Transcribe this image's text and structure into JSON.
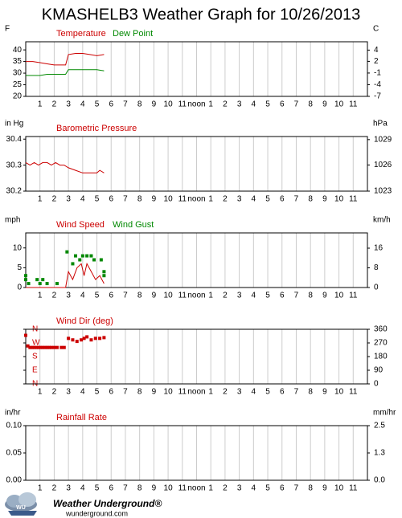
{
  "title": "KMASHELB3 Weather Graph for 10/26/2013",
  "chart_data": [
    {
      "type": "line",
      "unit_left": "F",
      "unit_right": "C",
      "xlim": [
        0,
        24
      ],
      "xticks": [
        1,
        2,
        3,
        4,
        5,
        6,
        7,
        8,
        9,
        10,
        11,
        {
          "value": 12,
          "label": "noon"
        },
        {
          "value": 13,
          "label": "1"
        },
        {
          "value": 14,
          "label": "2"
        },
        {
          "value": 15,
          "label": "3"
        },
        {
          "value": 16,
          "label": "4"
        },
        {
          "value": 17,
          "label": "5"
        },
        {
          "value": 18,
          "label": "6"
        },
        {
          "value": 19,
          "label": "7"
        },
        {
          "value": 20,
          "label": "8"
        },
        {
          "value": 21,
          "label": "9"
        },
        {
          "value": 22,
          "label": "10"
        },
        {
          "value": 23,
          "label": "11"
        }
      ],
      "ylim": [
        20,
        43.5
      ],
      "yticks": [
        20,
        25,
        30,
        35,
        40
      ],
      "y2lim": [
        -6.7,
        6.4
      ],
      "y2ticks": [
        {
          "value": -6.7,
          "label": "-7"
        },
        {
          "value": -3.9,
          "label": "-4"
        },
        {
          "value": -1.1,
          "label": "-1"
        },
        {
          "value": 1.7,
          "label": "2"
        },
        {
          "value": 4.4,
          "label": "4"
        }
      ],
      "grid": true,
      "series": [
        {
          "name": "Temperature",
          "color": "#cc0000",
          "x": [
            0,
            0.5,
            1,
            1.5,
            2,
            2.5,
            2.8,
            3,
            3.5,
            4,
            4.5,
            5,
            5.5
          ],
          "values": [
            35,
            35,
            34.5,
            34,
            33.5,
            33.5,
            33.5,
            38,
            38.5,
            38.5,
            38,
            37.5,
            38
          ]
        },
        {
          "name": "Dew Point",
          "color": "#008800",
          "x": [
            0,
            0.5,
            1,
            1.5,
            2,
            2.5,
            2.8,
            3,
            3.5,
            4,
            4.5,
            5,
            5.5
          ],
          "values": [
            29,
            29,
            29,
            29.5,
            29.5,
            29.5,
            29.5,
            31.5,
            31.5,
            31.5,
            31.5,
            31.5,
            31
          ]
        }
      ]
    },
    {
      "type": "line",
      "unit_left": "in Hg",
      "unit_right": "hPa",
      "xlim": [
        0,
        24
      ],
      "xticks": [
        1,
        2,
        3,
        4,
        5,
        6,
        7,
        8,
        9,
        10,
        11,
        {
          "value": 12,
          "label": "noon"
        },
        {
          "value": 13,
          "label": "1"
        },
        {
          "value": 14,
          "label": "2"
        },
        {
          "value": 15,
          "label": "3"
        },
        {
          "value": 16,
          "label": "4"
        },
        {
          "value": 17,
          "label": "5"
        },
        {
          "value": 18,
          "label": "6"
        },
        {
          "value": 19,
          "label": "7"
        },
        {
          "value": 20,
          "label": "8"
        },
        {
          "value": 21,
          "label": "9"
        },
        {
          "value": 22,
          "label": "10"
        },
        {
          "value": 23,
          "label": "11"
        }
      ],
      "ylim": [
        30.2,
        30.41
      ],
      "yticks": [
        30.2,
        30.3,
        30.4
      ],
      "y2lim": [
        1022.7,
        1029.8
      ],
      "y2ticks": [
        {
          "value": 1022.7,
          "label": "1023"
        },
        {
          "value": 1026.1,
          "label": "1026"
        },
        {
          "value": 1029.4,
          "label": "1029"
        }
      ],
      "grid": true,
      "series": [
        {
          "name": "Barometric Pressure",
          "color": "#cc0000",
          "x": [
            0,
            0.3,
            0.6,
            0.9,
            1.2,
            1.5,
            1.8,
            2.1,
            2.4,
            2.7,
            3,
            3.5,
            4,
            4.5,
            5,
            5.2,
            5.5
          ],
          "values": [
            30.31,
            30.3,
            30.31,
            30.3,
            30.31,
            30.31,
            30.3,
            30.31,
            30.3,
            30.3,
            30.29,
            30.28,
            30.27,
            30.27,
            30.27,
            30.28,
            30.27
          ]
        }
      ]
    },
    {
      "type": "line",
      "unit_left": "mph",
      "unit_right": "km/h",
      "xlim": [
        0,
        24
      ],
      "xticks": [
        1,
        2,
        3,
        4,
        5,
        6,
        7,
        8,
        9,
        10,
        11,
        {
          "value": 12,
          "label": "noon"
        },
        {
          "value": 13,
          "label": "1"
        },
        {
          "value": 14,
          "label": "2"
        },
        {
          "value": 15,
          "label": "3"
        },
        {
          "value": 16,
          "label": "4"
        },
        {
          "value": 17,
          "label": "5"
        },
        {
          "value": 18,
          "label": "6"
        },
        {
          "value": 19,
          "label": "7"
        },
        {
          "value": 20,
          "label": "8"
        },
        {
          "value": 21,
          "label": "9"
        },
        {
          "value": 22,
          "label": "10"
        },
        {
          "value": 23,
          "label": "11"
        }
      ],
      "ylim": [
        0,
        13.8
      ],
      "yticks": [
        0,
        5,
        10
      ],
      "y2lim": [
        0,
        22.2
      ],
      "y2ticks": [
        0,
        8,
        16
      ],
      "grid": true,
      "series": [
        {
          "name": "Wind Speed",
          "color": "#cc0000",
          "x": [
            0,
            0.5,
            1,
            1.5,
            2,
            2.5,
            2.8,
            3,
            3.3,
            3.6,
            3.9,
            4.1,
            4.3,
            4.6,
            4.9,
            5.2,
            5.5
          ],
          "values": [
            0,
            0,
            0,
            0,
            0,
            0,
            0,
            4,
            2,
            5,
            6,
            3,
            6,
            4,
            2,
            3,
            1
          ]
        },
        {
          "name": "Wind Gust",
          "color": "#008800",
          "mark": "square",
          "x": [
            0,
            0,
            0.2,
            0.8,
            1,
            1.2,
            1.5,
            2.2,
            2.9,
            3.3,
            3.5,
            3.8,
            4,
            4.3,
            4.6,
            4.8,
            5.3,
            5.5,
            5.5
          ],
          "values": [
            3,
            2,
            1,
            2,
            1,
            2,
            1,
            1,
            9,
            6,
            8,
            7,
            8,
            8,
            8,
            7,
            7,
            4,
            3
          ]
        }
      ]
    },
    {
      "type": "scatter",
      "ytick_labels_inside": true,
      "ytick_label_color": "#cc0000",
      "xlim": [
        0,
        24
      ],
      "xticks": [
        1,
        2,
        3,
        4,
        5,
        6,
        7,
        8,
        9,
        10,
        11,
        {
          "value": 12,
          "label": "noon"
        },
        {
          "value": 13,
          "label": "1"
        },
        {
          "value": 14,
          "label": "2"
        },
        {
          "value": 15,
          "label": "3"
        },
        {
          "value": 16,
          "label": "4"
        },
        {
          "value": 17,
          "label": "5"
        },
        {
          "value": 18,
          "label": "6"
        },
        {
          "value": 19,
          "label": "7"
        },
        {
          "value": 20,
          "label": "8"
        },
        {
          "value": 21,
          "label": "9"
        },
        {
          "value": 22,
          "label": "10"
        },
        {
          "value": 23,
          "label": "11"
        }
      ],
      "ylim": [
        0,
        360
      ],
      "yticks": [
        {
          "value": 0,
          "label": "N"
        },
        {
          "value": 90,
          "label": "E"
        },
        {
          "value": 180,
          "label": "S"
        },
        {
          "value": 270,
          "label": "W"
        },
        {
          "value": 360,
          "label": "N"
        }
      ],
      "y2lim": [
        0,
        360
      ],
      "y2ticks": [
        0,
        90,
        180,
        270,
        360
      ],
      "grid": true,
      "series": [
        {
          "name": "Wind Dir (deg)",
          "color": "#cc0000",
          "x": [
            0,
            0.15,
            0.3,
            0.45,
            0.6,
            0.75,
            0.9,
            1.05,
            1.2,
            1.35,
            1.5,
            1.65,
            1.8,
            2.0,
            2.2,
            2.5,
            2.7,
            3.0,
            3.3,
            3.6,
            3.9,
            4.1,
            4.3,
            4.6,
            4.9,
            5.2,
            5.5
          ],
          "values": [
            320,
            250,
            240,
            240,
            240,
            240,
            240,
            240,
            240,
            240,
            240,
            240,
            240,
            240,
            240,
            240,
            240,
            300,
            290,
            280,
            290,
            300,
            310,
            290,
            300,
            300,
            305
          ]
        }
      ]
    },
    {
      "type": "line",
      "unit_left": "in/hr",
      "unit_right": "mm/hr",
      "xlim": [
        0,
        24
      ],
      "xticks": [
        1,
        2,
        3,
        4,
        5,
        6,
        7,
        8,
        9,
        10,
        11,
        {
          "value": 12,
          "label": "noon"
        },
        {
          "value": 13,
          "label": "1"
        },
        {
          "value": 14,
          "label": "2"
        },
        {
          "value": 15,
          "label": "3"
        },
        {
          "value": 16,
          "label": "4"
        },
        {
          "value": 17,
          "label": "5"
        },
        {
          "value": 18,
          "label": "6"
        },
        {
          "value": 19,
          "label": "7"
        },
        {
          "value": 20,
          "label": "8"
        },
        {
          "value": 21,
          "label": "9"
        },
        {
          "value": 22,
          "label": "10"
        },
        {
          "value": 23,
          "label": "11"
        }
      ],
      "ylim": [
        0,
        0.1
      ],
      "yticks": [
        {
          "value": 0,
          "label": "0.00"
        },
        {
          "value": 0.05,
          "label": "0.05"
        },
        {
          "value": 0.1,
          "label": "0.10"
        }
      ],
      "y2lim": [
        0,
        2.54
      ],
      "y2ticks": [
        {
          "value": 0,
          "label": "0.0"
        },
        {
          "value": 1.27,
          "label": "1.3"
        },
        {
          "value": 2.54,
          "label": "2.5"
        }
      ],
      "grid": true,
      "series": [
        {
          "name": "Rainfall Rate",
          "color": "#cc0000",
          "x": [],
          "values": []
        }
      ]
    }
  ],
  "footer": {
    "brand": "Weather Underground®",
    "url": "wunderground.com"
  }
}
